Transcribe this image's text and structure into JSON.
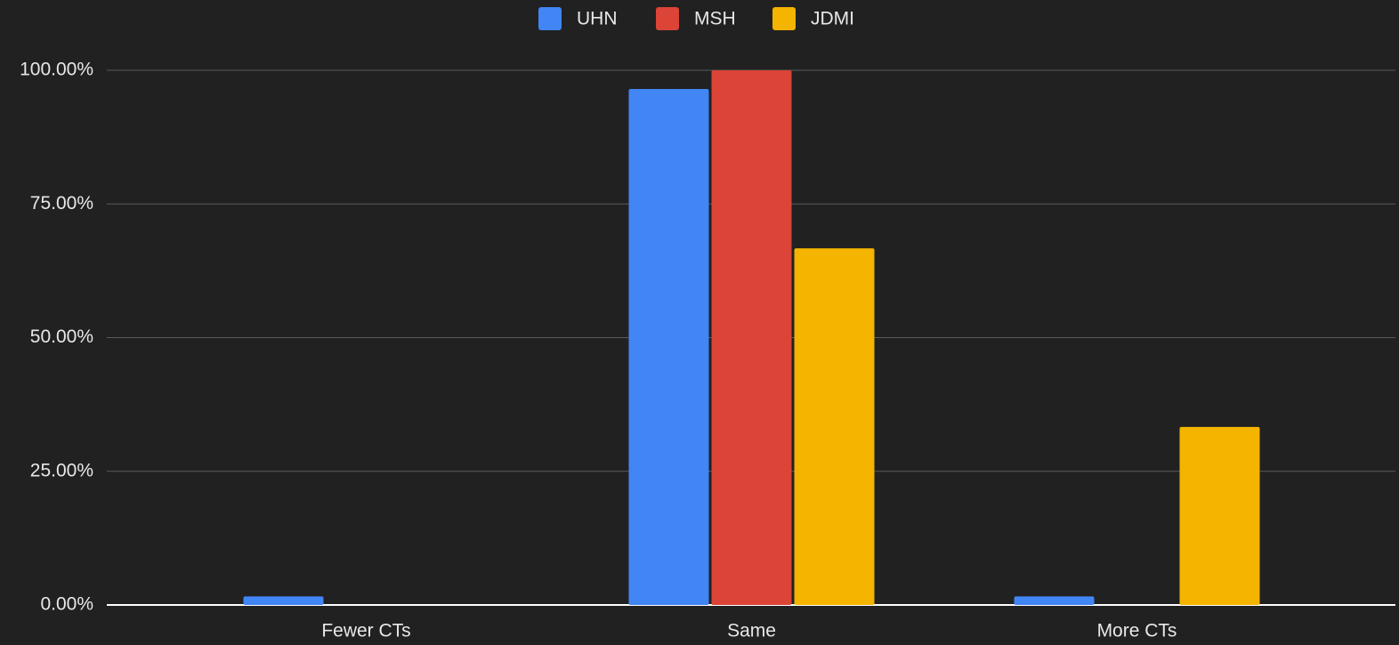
{
  "chart_data": {
    "type": "bar",
    "categories": [
      "Fewer CTs",
      "Same",
      "More CTs"
    ],
    "series": [
      {
        "name": "UHN",
        "color": "#4285f4",
        "values": [
          1.6,
          96.5,
          1.6
        ]
      },
      {
        "name": "MSH",
        "color": "#db4437",
        "values": [
          0,
          100,
          0
        ]
      },
      {
        "name": "JDMI",
        "color": "#f4b400",
        "values": [
          0,
          66.7,
          33.3
        ]
      }
    ],
    "ylim": [
      0,
      100
    ],
    "yticks": [
      {
        "value": 0,
        "label": "0.00%"
      },
      {
        "value": 25,
        "label": "25.00%"
      },
      {
        "value": 50,
        "label": "50.00%"
      },
      {
        "value": 75,
        "label": "75.00%"
      },
      {
        "value": 100,
        "label": "100.00%"
      }
    ],
    "grid": true,
    "legend": "top"
  }
}
